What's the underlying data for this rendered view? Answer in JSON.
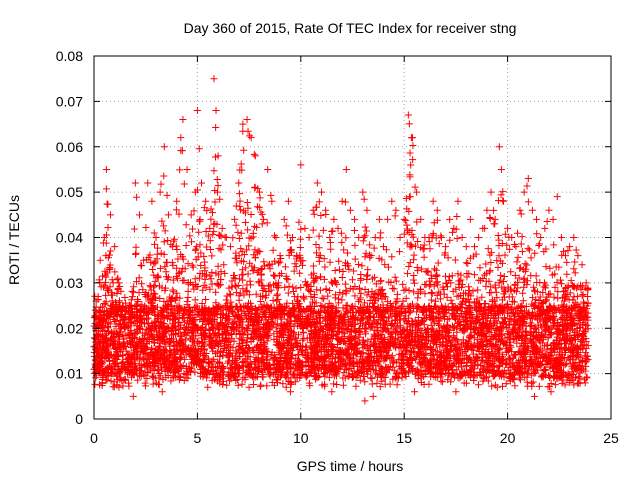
{
  "chart_data": {
    "type": "scatter",
    "title": "Day 360 of 2015, Rate Of TEC Index for receiver stng",
    "xlabel": "GPS time / hours",
    "ylabel": "ROTI / TECUs",
    "xlim": [
      0,
      25
    ],
    "ylim": [
      0,
      0.08
    ],
    "xticks": [
      0,
      5,
      10,
      15,
      20,
      25
    ],
    "xtick_labels": [
      "0",
      "5",
      "10",
      "15",
      "20",
      "25"
    ],
    "yticks": [
      0,
      0.01,
      0.02,
      0.03,
      0.04,
      0.05,
      0.06,
      0.07,
      0.08
    ],
    "ytick_labels": [
      "0",
      "0.01",
      "0.02",
      "0.03",
      "0.04",
      "0.05",
      "0.06",
      "0.07",
      "0.08"
    ],
    "grid": true,
    "marker": "+",
    "color": "#ff0000",
    "series": [
      {
        "points": [
          [
            0.0,
            0.016
          ],
          [
            0.2,
            0.027
          ],
          [
            0.3,
            0.035
          ],
          [
            0.5,
            0.04
          ],
          [
            0.6,
            0.055
          ],
          [
            0.8,
            0.045
          ],
          [
            1.0,
            0.038
          ],
          [
            1.2,
            0.03
          ],
          [
            1.5,
            0.022
          ],
          [
            1.8,
            0.019
          ],
          [
            2.0,
            0.052
          ],
          [
            2.2,
            0.045
          ],
          [
            2.4,
            0.035
          ],
          [
            2.6,
            0.052
          ],
          [
            2.8,
            0.048
          ],
          [
            3.0,
            0.04
          ],
          [
            3.2,
            0.05
          ],
          [
            3.4,
            0.06
          ],
          [
            3.6,
            0.045
          ],
          [
            3.8,
            0.038
          ],
          [
            4.0,
            0.048
          ],
          [
            4.2,
            0.062
          ],
          [
            4.3,
            0.066
          ],
          [
            4.5,
            0.055
          ],
          [
            4.7,
            0.045
          ],
          [
            4.9,
            0.05
          ],
          [
            5.0,
            0.068
          ],
          [
            5.2,
            0.052
          ],
          [
            5.4,
            0.048
          ],
          [
            5.6,
            0.042
          ],
          [
            5.8,
            0.075
          ],
          [
            5.9,
            0.068
          ],
          [
            6.0,
            0.058
          ],
          [
            6.2,
            0.042
          ],
          [
            6.4,
            0.04
          ],
          [
            6.6,
            0.038
          ],
          [
            6.8,
            0.044
          ],
          [
            7.0,
            0.052
          ],
          [
            7.2,
            0.065
          ],
          [
            7.4,
            0.066
          ],
          [
            7.6,
            0.062
          ],
          [
            7.8,
            0.058
          ],
          [
            8.0,
            0.05
          ],
          [
            8.2,
            0.044
          ],
          [
            8.4,
            0.055
          ],
          [
            8.6,
            0.048
          ],
          [
            8.8,
            0.04
          ],
          [
            9.0,
            0.036
          ],
          [
            9.2,
            0.044
          ],
          [
            9.4,
            0.048
          ],
          [
            9.6,
            0.04
          ],
          [
            9.8,
            0.036
          ],
          [
            10.0,
            0.056
          ],
          [
            10.2,
            0.042
          ],
          [
            10.4,
            0.04
          ],
          [
            10.6,
            0.046
          ],
          [
            10.8,
            0.052
          ],
          [
            11.0,
            0.05
          ],
          [
            11.2,
            0.046
          ],
          [
            11.4,
            0.04
          ],
          [
            11.6,
            0.044
          ],
          [
            11.8,
            0.042
          ],
          [
            12.0,
            0.048
          ],
          [
            12.2,
            0.055
          ],
          [
            12.4,
            0.046
          ],
          [
            12.6,
            0.044
          ],
          [
            12.8,
            0.04
          ],
          [
            13.0,
            0.05
          ],
          [
            13.2,
            0.046
          ],
          [
            13.4,
            0.036
          ],
          [
            13.6,
            0.04
          ],
          [
            13.8,
            0.044
          ],
          [
            14.0,
            0.038
          ],
          [
            14.2,
            0.044
          ],
          [
            14.4,
            0.048
          ],
          [
            14.6,
            0.046
          ],
          [
            14.8,
            0.04
          ],
          [
            15.0,
            0.044
          ],
          [
            15.2,
            0.067
          ],
          [
            15.4,
            0.062
          ],
          [
            15.6,
            0.05
          ],
          [
            15.8,
            0.044
          ],
          [
            16.0,
            0.04
          ],
          [
            16.2,
            0.04
          ],
          [
            16.4,
            0.048
          ],
          [
            16.6,
            0.046
          ],
          [
            16.8,
            0.04
          ],
          [
            17.0,
            0.038
          ],
          [
            17.2,
            0.044
          ],
          [
            17.4,
            0.042
          ],
          [
            17.6,
            0.048
          ],
          [
            17.8,
            0.04
          ],
          [
            18.0,
            0.038
          ],
          [
            18.2,
            0.044
          ],
          [
            18.4,
            0.038
          ],
          [
            18.6,
            0.04
          ],
          [
            18.8,
            0.042
          ],
          [
            19.0,
            0.046
          ],
          [
            19.2,
            0.05
          ],
          [
            19.4,
            0.044
          ],
          [
            19.6,
            0.06
          ],
          [
            19.7,
            0.055
          ],
          [
            19.8,
            0.048
          ],
          [
            20.0,
            0.042
          ],
          [
            20.2,
            0.04
          ],
          [
            20.4,
            0.038
          ],
          [
            20.6,
            0.046
          ],
          [
            20.8,
            0.05
          ],
          [
            21.0,
            0.053
          ],
          [
            21.2,
            0.046
          ],
          [
            21.4,
            0.044
          ],
          [
            21.6,
            0.04
          ],
          [
            21.8,
            0.042
          ],
          [
            22.0,
            0.046
          ],
          [
            22.2,
            0.044
          ],
          [
            22.4,
            0.049
          ],
          [
            22.6,
            0.04
          ],
          [
            22.8,
            0.036
          ],
          [
            23.0,
            0.038
          ],
          [
            23.2,
            0.04
          ],
          [
            23.4,
            0.036
          ],
          [
            23.6,
            0.034
          ],
          [
            23.8,
            0.03
          ],
          [
            0.4,
            0.008
          ],
          [
            1.9,
            0.005
          ],
          [
            3.3,
            0.006
          ],
          [
            5.5,
            0.007
          ],
          [
            7.5,
            0.007
          ],
          [
            9.5,
            0.006
          ],
          [
            11.5,
            0.006
          ],
          [
            13.1,
            0.004
          ],
          [
            13.5,
            0.005
          ],
          [
            15.5,
            0.006
          ],
          [
            17.5,
            0.006
          ],
          [
            19.5,
            0.007
          ],
          [
            21.3,
            0.005
          ],
          [
            22.1,
            0.006
          ],
          [
            23.5,
            0.008
          ]
        ],
        "band": {
          "x_range": [
            0.0,
            23.9
          ],
          "note_values": [
            0.01,
            0.03
          ]
        }
      }
    ]
  }
}
